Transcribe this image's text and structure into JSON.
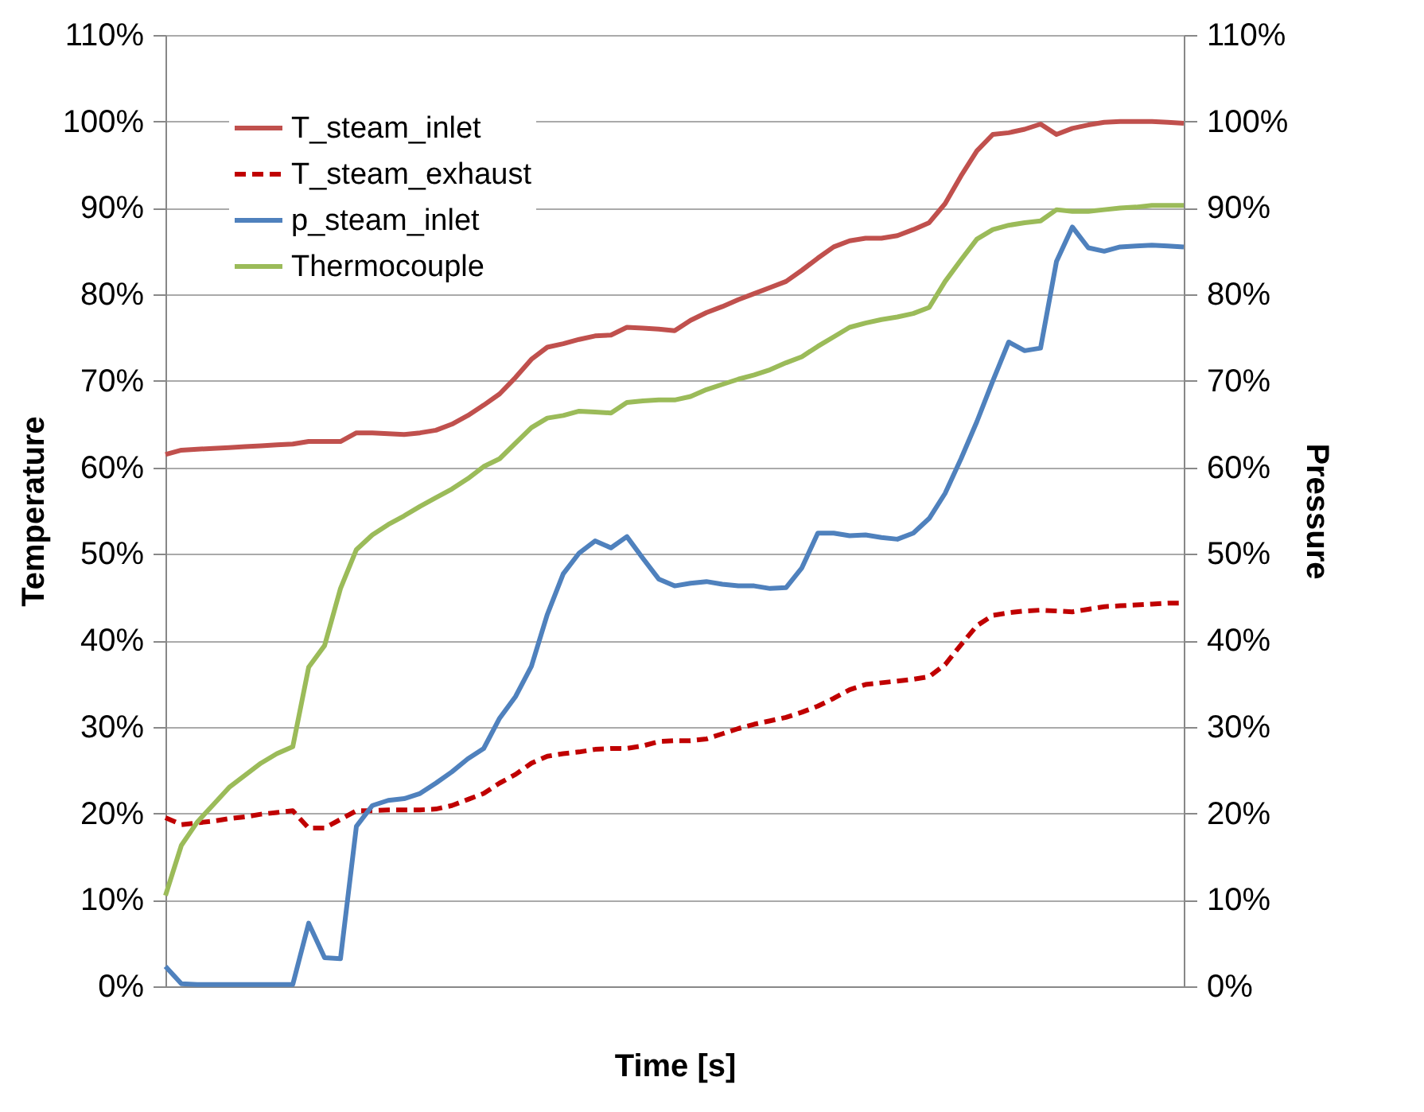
{
  "chart_data": {
    "type": "line",
    "xlabel": "Time [s]",
    "ylabel": "Temperature",
    "y2label": "Pressure",
    "categories": [
      null,
      null,
      null,
      null,
      null,
      null,
      null,
      null,
      null,
      null,
      null,
      null,
      null,
      null,
      null,
      null,
      null,
      null,
      null,
      null,
      null,
      null,
      null,
      null,
      null,
      null,
      null,
      null,
      null,
      null,
      null,
      null,
      null,
      null,
      null,
      null,
      null,
      null,
      null,
      null,
      null,
      null,
      null,
      null,
      null,
      null,
      null,
      null,
      null,
      null,
      null,
      null,
      null,
      null,
      null,
      null,
      null,
      null,
      null,
      null,
      null,
      null,
      null,
      null,
      null
    ],
    "ylim": [
      0,
      110
    ],
    "yticks": [
      {
        "value": 0,
        "label": "0%"
      },
      {
        "value": 10,
        "label": "10%"
      },
      {
        "value": 20,
        "label": "20%"
      },
      {
        "value": 30,
        "label": "30%"
      },
      {
        "value": 40,
        "label": "40%"
      },
      {
        "value": 50,
        "label": "50%"
      },
      {
        "value": 60,
        "label": "60%"
      },
      {
        "value": 70,
        "label": "70%"
      },
      {
        "value": 80,
        "label": "80%"
      },
      {
        "value": 90,
        "label": "90%"
      },
      {
        "value": 100,
        "label": "100%"
      },
      {
        "value": 110,
        "label": "110%"
      }
    ],
    "y2lim": [
      0,
      110
    ],
    "y2ticks": [
      {
        "value": 0,
        "label": "0%"
      },
      {
        "value": 10,
        "label": "10%"
      },
      {
        "value": 20,
        "label": "20%"
      },
      {
        "value": 30,
        "label": "30%"
      },
      {
        "value": 40,
        "label": "40%"
      },
      {
        "value": 50,
        "label": "50%"
      },
      {
        "value": 60,
        "label": "60%"
      },
      {
        "value": 70,
        "label": "70%"
      },
      {
        "value": 80,
        "label": "80%"
      },
      {
        "value": 90,
        "label": "90%"
      },
      {
        "value": 100,
        "label": "100%"
      },
      {
        "value": 110,
        "label": "110%"
      }
    ],
    "grid": "y",
    "legend": "top left",
    "marker": "none",
    "series": [
      {
        "name": "T_steam_inlet",
        "color": "#c0504d",
        "line_style": "solid",
        "values": [
          61.5,
          62.0,
          62.1,
          62.2,
          62.3,
          62.4,
          62.5,
          62.6,
          62.7,
          63.0,
          63.0,
          63.0,
          64.0,
          64.0,
          63.9,
          63.8,
          64.0,
          64.3,
          65.0,
          66.0,
          67.2,
          68.5,
          70.4,
          72.5,
          73.9,
          74.3,
          74.8,
          75.2,
          75.3,
          76.2,
          76.1,
          76.0,
          75.8,
          77.0,
          77.9,
          78.6,
          79.4,
          80.1,
          80.8,
          81.5,
          82.8,
          84.2,
          85.5,
          86.2,
          86.5,
          86.5,
          86.8,
          87.5,
          88.3,
          90.5,
          93.7,
          96.6,
          98.5,
          98.7,
          99.1,
          99.7,
          98.5,
          99.2,
          99.6,
          99.9,
          100,
          100,
          100,
          99.9,
          99.8
        ]
      },
      {
        "name": "T_steam_exhaust",
        "color": "#c00000",
        "line_style": "dashed",
        "values": [
          19.5,
          18.7,
          18.9,
          19.1,
          19.4,
          19.6,
          19.9,
          20.1,
          20.3,
          18.3,
          18.3,
          19.3,
          20.3,
          20.3,
          20.4,
          20.4,
          20.4,
          20.5,
          20.9,
          21.6,
          22.3,
          23.5,
          24.5,
          25.8,
          26.6,
          26.9,
          27.1,
          27.4,
          27.5,
          27.5,
          27.8,
          28.3,
          28.4,
          28.4,
          28.6,
          29.2,
          29.8,
          30.3,
          30.7,
          31.1,
          31.7,
          32.4,
          33.3,
          34.3,
          34.9,
          35.1,
          35.3,
          35.5,
          35.8,
          37.2,
          39.5,
          41.7,
          42.9,
          43.2,
          43.4,
          43.5,
          43.4,
          43.3,
          43.6,
          43.9,
          44.0,
          44.1,
          44.2,
          44.3,
          44.3
        ]
      },
      {
        "name": "p_steam_inlet",
        "color": "#4f81bd",
        "line_style": "solid",
        "axis": "y2",
        "values": [
          2.3,
          0.3,
          0.2,
          0.2,
          0.2,
          0.2,
          0.2,
          0.2,
          0.2,
          7.3,
          3.3,
          3.2,
          18.5,
          20.9,
          21.5,
          21.7,
          22.3,
          23.5,
          24.8,
          26.3,
          27.5,
          31,
          33.5,
          37,
          43,
          47.7,
          50.1,
          51.5,
          50.7,
          52,
          49.5,
          47.1,
          46.3,
          46.6,
          46.8,
          46.5,
          46.3,
          46.3,
          46,
          46.1,
          48.4,
          52.4,
          52.4,
          52.1,
          52.2,
          51.9,
          51.7,
          52.4,
          54.1,
          57,
          61,
          65.3,
          70,
          74.5,
          73.5,
          73.8,
          83.8,
          87.8,
          85.4,
          85,
          85.5,
          85.6,
          85.7,
          85.6,
          85.5
        ]
      },
      {
        "name": "Thermocouple",
        "color": "#9bbb59",
        "line_style": "solid",
        "values": [
          10.5,
          16.3,
          19,
          21,
          23,
          24.4,
          25.8,
          26.9,
          27.7,
          36.9,
          39.4,
          46,
          50.5,
          52.2,
          53.4,
          54.4,
          55.5,
          56.5,
          57.5,
          58.7,
          60.1,
          61,
          62.8,
          64.6,
          65.7,
          66,
          66.5,
          66.4,
          66.3,
          67.5,
          67.7,
          67.8,
          67.8,
          68.2,
          69,
          69.6,
          70.2,
          70.7,
          71.3,
          72.1,
          72.8,
          74,
          75.1,
          76.2,
          76.7,
          77.1,
          77.4,
          77.8,
          78.5,
          81.5,
          84,
          86.4,
          87.5,
          88,
          88.3,
          88.5,
          89.8,
          89.6,
          89.6,
          89.8,
          90,
          90.1,
          90.3,
          90.3,
          90.3
        ]
      }
    ]
  }
}
